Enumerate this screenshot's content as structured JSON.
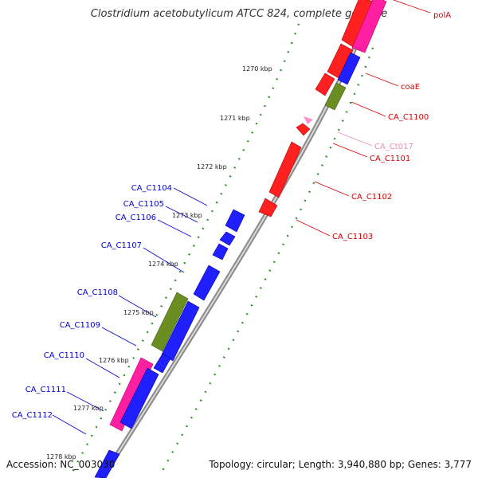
{
  "title": "Clostridium acetobutylicum ATCC 824, complete genome",
  "accession": "Accession: NC_003030",
  "topology": "Topology: circular; Length: 3,940,880 bp; Genes: 3,777",
  "ticks": [
    "1270 kbp",
    "1271 kbp",
    "1272 kbp",
    "1273 kbp",
    "1274 kbp",
    "1275 kbp",
    "1276 kbp",
    "1277 kbp",
    "1278 kbp"
  ],
  "labels": [
    {
      "text": "polA",
      "color": "#d40000"
    },
    {
      "text": "coaE",
      "color": "#d40000"
    },
    {
      "text": "CA_C1100",
      "color": "#d40000"
    },
    {
      "text": "CA_Ct017",
      "color": "#f08ab8"
    },
    {
      "text": "CA_C1101",
      "color": "#d40000"
    },
    {
      "text": "CA_C1102",
      "color": "#d40000"
    },
    {
      "text": "CA_C1103",
      "color": "#d40000"
    },
    {
      "text": "CA_C1104",
      "color": "#0000cc"
    },
    {
      "text": "CA_C1105",
      "color": "#0000cc"
    },
    {
      "text": "CA_C1106",
      "color": "#0000cc"
    },
    {
      "text": "CA_C1107",
      "color": "#0000cc"
    },
    {
      "text": "CA_C1108",
      "color": "#0000cc"
    },
    {
      "text": "CA_C1109",
      "color": "#0000cc"
    },
    {
      "text": "CA_C1110",
      "color": "#0000cc"
    },
    {
      "text": "CA_C1111",
      "color": "#0000cc"
    },
    {
      "text": "CA_C1112",
      "color": "#0000cc"
    }
  ],
  "colors": {
    "red": "#ff0000",
    "blue": "#0000ff",
    "pink": "#ff1493",
    "olive": "#6b8e23",
    "backbone": "#777777",
    "gc": "#1f7a1f"
  }
}
